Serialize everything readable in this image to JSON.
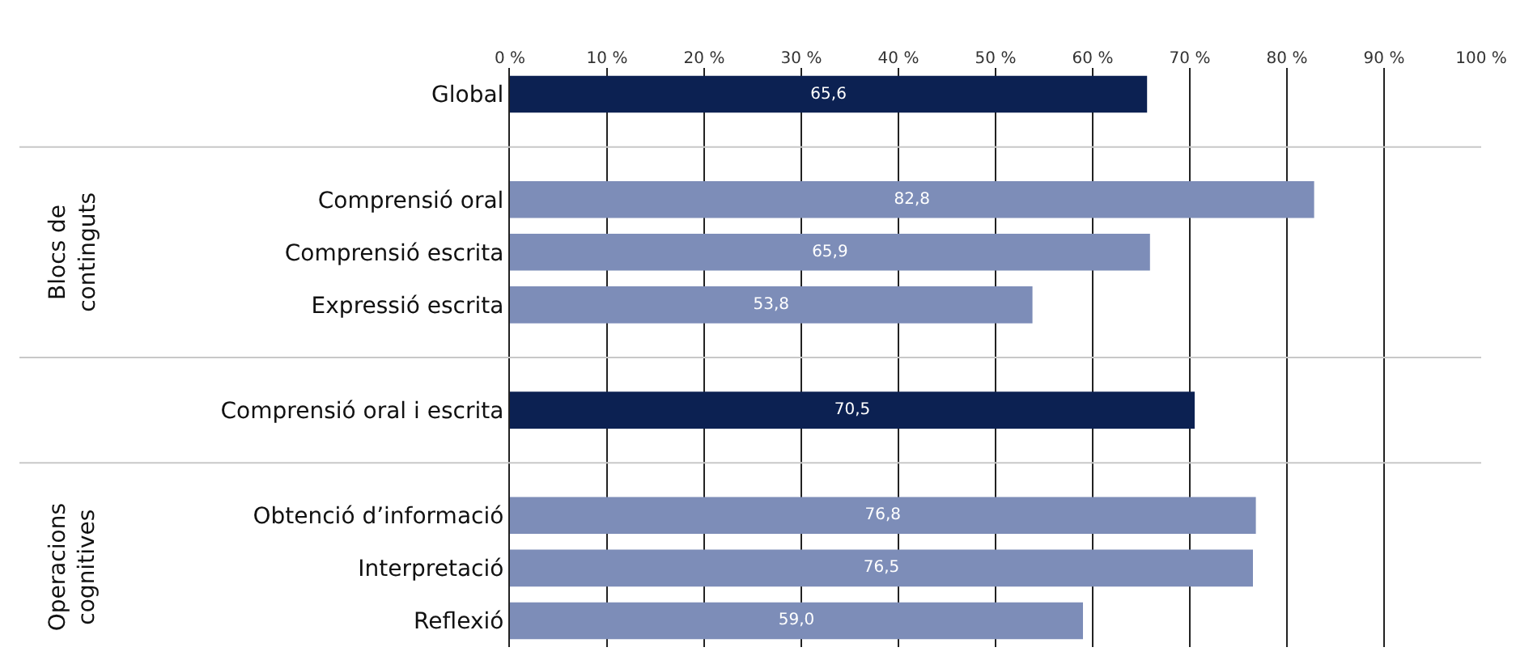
{
  "chart_data": {
    "type": "bar",
    "orientation": "horizontal",
    "categories": [
      "Global",
      null,
      "Comprensió oral",
      "Comprensió escrita",
      "Expressió escrita",
      null,
      "Comprensió oral i escrita",
      null,
      "Obtenció d’informació",
      "Interpretació",
      "Reflexió"
    ],
    "values": [
      65.6,
      null,
      82.8,
      65.9,
      53.8,
      null,
      70.5,
      null,
      76.8,
      76.5,
      59.0
    ],
    "value_labels": [
      "65,6",
      null,
      "82,8",
      "65,9",
      "53,8",
      null,
      "70,5",
      null,
      "76,8",
      "76,5",
      "59,0"
    ],
    "colors": [
      "#0c2152",
      null,
      "#7d8db8",
      "#7d8db8",
      "#7d8db8",
      null,
      "#0c2152",
      null,
      "#7d8db8",
      "#7d8db8",
      "#7d8db8"
    ],
    "xlim": [
      0,
      100
    ],
    "xticks": [
      {
        "value": 0,
        "label": "0 %"
      },
      {
        "value": 10,
        "label": "10 %"
      },
      {
        "value": 20,
        "label": "20 %"
      },
      {
        "value": 30,
        "label": "30 %"
      },
      {
        "value": 40,
        "label": "40 %"
      },
      {
        "value": 50,
        "label": "50 %"
      },
      {
        "value": 60,
        "label": "60 %"
      },
      {
        "value": 70,
        "label": "70 %"
      },
      {
        "value": 80,
        "label": "80 %"
      },
      {
        "value": 90,
        "label": "90 %"
      },
      {
        "value": 100,
        "label": "100 %"
      }
    ],
    "grid": "x",
    "annotations": [
      "Blocs de continguts",
      "Operacions cognitives"
    ]
  }
}
